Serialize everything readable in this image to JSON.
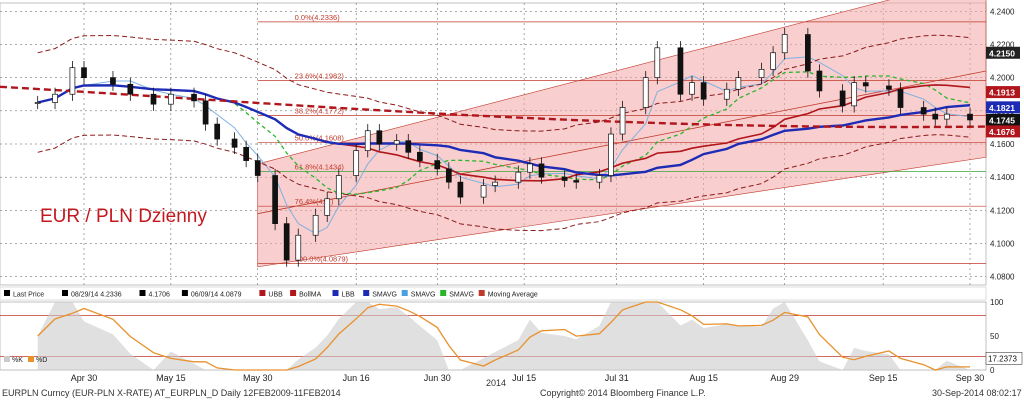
{
  "chart_data": {
    "type": "line",
    "title": "EUR / PLN Dzienny",
    "xlabel": "2014",
    "date_labels": [
      "Apr 30",
      "May 15",
      "May 30",
      "Jun 16",
      "Jun 30",
      "Jul 15",
      "Jul 31",
      "Aug 15",
      "Aug 29",
      "Sep 15",
      "Sep 30"
    ],
    "y_ticks": [
      "4.2400",
      "4.2200",
      "4.2000",
      "4.1800",
      "4.1600",
      "4.1400",
      "4.1200",
      "4.1000",
      "4.0800"
    ],
    "ylim": [
      4.075,
      4.245
    ],
    "last_price_points": [
      [
        "Apr 22",
        4.185
      ],
      [
        "Apr 25",
        4.19
      ],
      [
        "Apr 28",
        4.206
      ],
      [
        "Apr 30",
        4.2
      ],
      [
        "May 5",
        4.196
      ],
      [
        "May 8",
        4.19
      ],
      [
        "May 12",
        4.184
      ],
      [
        "May 15",
        4.19
      ],
      [
        "May 19",
        4.186
      ],
      [
        "May 21",
        4.172
      ],
      [
        "May 23",
        4.163
      ],
      [
        "May 26",
        4.158
      ],
      [
        "May 28",
        4.15
      ],
      [
        "May 30",
        4.141
      ],
      [
        "Jun 2",
        4.112
      ],
      [
        "Jun 4",
        4.09
      ],
      [
        "Jun 6",
        4.105
      ],
      [
        "Jun 9",
        4.117
      ],
      [
        "Jun 11",
        4.127
      ],
      [
        "Jun 13",
        4.141
      ],
      [
        "Jun 16",
        4.156
      ],
      [
        "Jun 18",
        4.168
      ],
      [
        "Jun 20",
        4.16
      ],
      [
        "Jun 23",
        4.162
      ],
      [
        "Jun 25",
        4.155
      ],
      [
        "Jun 27",
        4.15
      ],
      [
        "Jun 30",
        4.145
      ],
      [
        "Jul 2",
        4.137
      ],
      [
        "Jul 4",
        4.128
      ],
      [
        "Jul 8",
        4.135
      ],
      [
        "Jul 10",
        4.137
      ],
      [
        "Jul 14",
        4.143
      ],
      [
        "Jul 16",
        4.148
      ],
      [
        "Jul 18",
        4.14
      ],
      [
        "Jul 22",
        4.138
      ],
      [
        "Jul 24",
        4.137
      ],
      [
        "Jul 28",
        4.141
      ],
      [
        "Jul 30",
        4.166
      ],
      [
        "Aug 1",
        4.182
      ],
      [
        "Aug 5",
        4.2
      ],
      [
        "Aug 7",
        4.218
      ],
      [
        "Aug 11",
        4.19
      ],
      [
        "Aug 13",
        4.197
      ],
      [
        "Aug 15",
        4.187
      ],
      [
        "Aug 19",
        4.193
      ],
      [
        "Aug 21",
        4.2
      ],
      [
        "Aug 25",
        4.205
      ],
      [
        "Aug 27",
        4.215
      ],
      [
        "Aug 29",
        4.226
      ],
      [
        "Sep 2",
        4.204
      ],
      [
        "Sep 4",
        4.192
      ],
      [
        "Sep 8",
        4.183
      ],
      [
        "Sep 10",
        4.197
      ],
      [
        "Sep 12",
        4.195
      ],
      [
        "Sep 16",
        4.193
      ],
      [
        "Sep 18",
        4.182
      ],
      [
        "Sep 22",
        4.178
      ],
      [
        "Sep 24",
        4.175
      ],
      [
        "Sep 26",
        4.178
      ],
      [
        "Sep 30",
        4.1745
      ]
    ],
    "fibonacci_levels": [
      {
        "label": "0.0%(4.2336)",
        "value": 4.2336
      },
      {
        "label": "23.6%(4.1982)",
        "value": 4.1982
      },
      {
        "label": "38.2%(4.1772)",
        "value": 4.1772
      },
      {
        "label": "50.0%(4.1608)",
        "value": 4.1608
      },
      {
        "label": "61.8%(4.1434)",
        "value": 4.1434
      },
      {
        "label": "76.4%(4.1 )",
        "value": 4.1225
      },
      {
        "label": "100.0%(4.0879)",
        "value": 4.0879
      }
    ],
    "price_labels": [
      {
        "text": "4.2150",
        "value": 4.215,
        "color": "#ffffff",
        "bg": "#222222"
      },
      {
        "text": "4.1913",
        "value": 4.1913,
        "color": "#ffffff",
        "bg": "#b0161b"
      },
      {
        "text": "4.1821",
        "value": 4.1821,
        "color": "#ffffff",
        "bg": "#1d2bb5"
      },
      {
        "text": "4.1745",
        "value": 4.1745,
        "color": "#ffffff",
        "bg": "#111111"
      },
      {
        "text": "4.1676",
        "value": 4.1676,
        "color": "#ffffff",
        "bg": "#b0161b"
      }
    ],
    "legend": [
      "Last Price",
      "08/29/14 4.2336",
      "4.1706",
      "06/09/14 4.0879",
      "UBB",
      "BollMA",
      "LBB",
      "SMAVG",
      "SMAVG",
      "SMAVG",
      "Moving Average"
    ],
    "indicator_ticks": [
      "100",
      "50",
      "0"
    ],
    "indicator_labels": [
      "%K",
      "%D"
    ],
    "indicator_last_value": "17.2373",
    "colors": {
      "price": "#000000",
      "channel": "#f4a6a6",
      "sma_blue": "#1d2bb5",
      "sma_red": "#b0161b",
      "sma_green": "#2bb52b",
      "fib": "#c0392b"
    }
  },
  "footer": {
    "ticker": "EURPLN Curncy (EUR-PLN X-RATE) AT_EURPLN_D  Daily 12FEB2009-11FEB2014",
    "copyright": "Copyright© 2014 Bloomberg Finance L.P.",
    "timestamp": "30-Sep-2014 08:02:17"
  }
}
